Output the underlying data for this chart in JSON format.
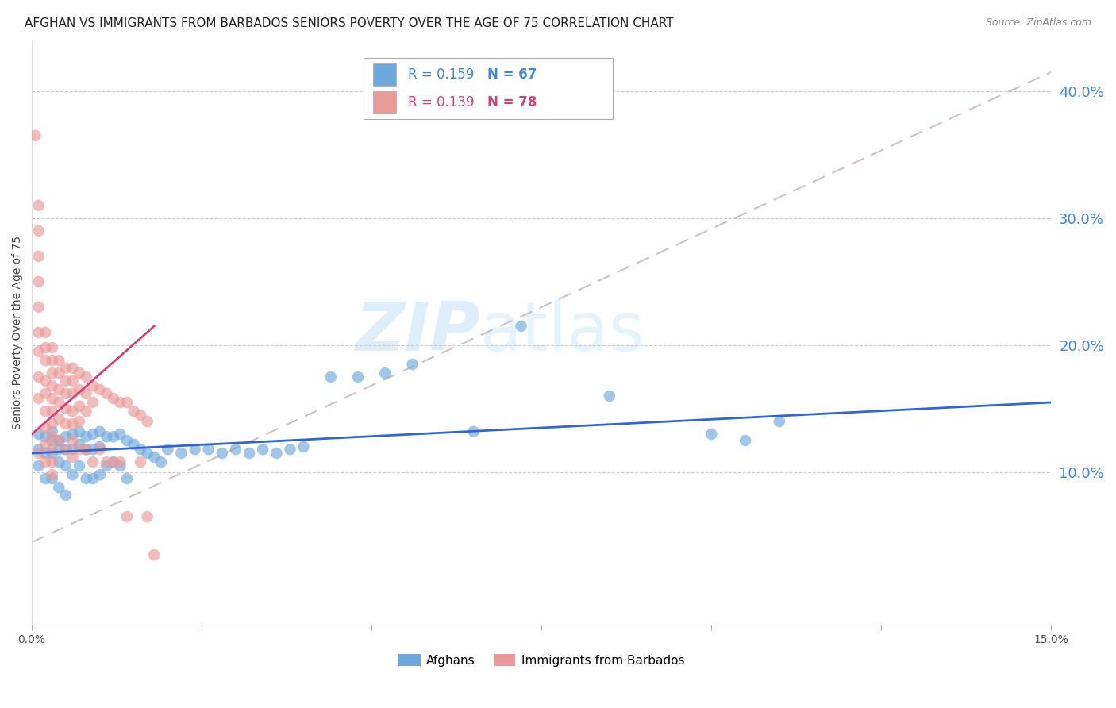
{
  "title": "AFGHAN VS IMMIGRANTS FROM BARBADOS SENIORS POVERTY OVER THE AGE OF 75 CORRELATION CHART",
  "source": "Source: ZipAtlas.com",
  "ylabel": "Seniors Poverty Over the Age of 75",
  "xlim": [
    0.0,
    0.15
  ],
  "ylim": [
    -0.02,
    0.44
  ],
  "x_ticks": [
    0.0,
    0.025,
    0.05,
    0.075,
    0.1,
    0.125,
    0.15
  ],
  "x_tick_labels": [
    "0.0%",
    "",
    "",
    "",
    "",
    "",
    "15.0%"
  ],
  "y_ticks_right": [
    0.1,
    0.2,
    0.3,
    0.4
  ],
  "y_tick_labels_right": [
    "10.0%",
    "20.0%",
    "30.0%",
    "40.0%"
  ],
  "legend_r1": "R = 0.159",
  "legend_n1": "N = 67",
  "legend_r2": "R = 0.139",
  "legend_n2": "N = 78",
  "afghan_color": "#6fa8dc",
  "barbados_color": "#ea9999",
  "afghan_line_color": "#3366cc",
  "barbados_line_color": "#cc4477",
  "diagonal_color": "#ccbbbb",
  "title_fontsize": 11,
  "axis_label_fontsize": 10,
  "tick_fontsize": 10,
  "afghan_x": [
    0.001,
    0.001,
    0.001,
    0.002,
    0.002,
    0.002,
    0.003,
    0.003,
    0.003,
    0.003,
    0.004,
    0.004,
    0.004,
    0.004,
    0.005,
    0.005,
    0.005,
    0.005,
    0.006,
    0.006,
    0.006,
    0.007,
    0.007,
    0.007,
    0.008,
    0.008,
    0.008,
    0.009,
    0.009,
    0.009,
    0.01,
    0.01,
    0.01,
    0.011,
    0.011,
    0.012,
    0.012,
    0.013,
    0.013,
    0.014,
    0.014,
    0.015,
    0.016,
    0.017,
    0.018,
    0.019,
    0.02,
    0.022,
    0.024,
    0.026,
    0.028,
    0.03,
    0.032,
    0.034,
    0.036,
    0.038,
    0.04,
    0.044,
    0.048,
    0.052,
    0.056,
    0.065,
    0.072,
    0.085,
    0.1,
    0.105,
    0.11
  ],
  "afghan_y": [
    0.13,
    0.118,
    0.105,
    0.128,
    0.115,
    0.095,
    0.132,
    0.125,
    0.115,
    0.095,
    0.125,
    0.118,
    0.108,
    0.088,
    0.128,
    0.118,
    0.105,
    0.082,
    0.13,
    0.118,
    0.098,
    0.132,
    0.122,
    0.105,
    0.128,
    0.118,
    0.095,
    0.13,
    0.118,
    0.095,
    0.132,
    0.12,
    0.098,
    0.128,
    0.105,
    0.128,
    0.108,
    0.13,
    0.105,
    0.125,
    0.095,
    0.122,
    0.118,
    0.115,
    0.112,
    0.108,
    0.118,
    0.115,
    0.118,
    0.118,
    0.115,
    0.118,
    0.115,
    0.118,
    0.115,
    0.118,
    0.12,
    0.175,
    0.175,
    0.178,
    0.185,
    0.132,
    0.215,
    0.16,
    0.13,
    0.125,
    0.14
  ],
  "barbados_x": [
    0.0005,
    0.001,
    0.001,
    0.001,
    0.001,
    0.001,
    0.001,
    0.001,
    0.001,
    0.001,
    0.001,
    0.002,
    0.002,
    0.002,
    0.002,
    0.002,
    0.002,
    0.002,
    0.002,
    0.002,
    0.003,
    0.003,
    0.003,
    0.003,
    0.003,
    0.003,
    0.003,
    0.003,
    0.003,
    0.003,
    0.003,
    0.004,
    0.004,
    0.004,
    0.004,
    0.004,
    0.004,
    0.005,
    0.005,
    0.005,
    0.005,
    0.005,
    0.005,
    0.006,
    0.006,
    0.006,
    0.006,
    0.006,
    0.006,
    0.006,
    0.007,
    0.007,
    0.007,
    0.007,
    0.007,
    0.008,
    0.008,
    0.008,
    0.008,
    0.009,
    0.009,
    0.009,
    0.01,
    0.01,
    0.011,
    0.011,
    0.012,
    0.012,
    0.013,
    0.013,
    0.014,
    0.014,
    0.015,
    0.016,
    0.016,
    0.017,
    0.017,
    0.018
  ],
  "barbados_y": [
    0.365,
    0.31,
    0.29,
    0.27,
    0.25,
    0.23,
    0.21,
    0.195,
    0.175,
    0.158,
    0.115,
    0.21,
    0.198,
    0.188,
    0.172,
    0.162,
    0.148,
    0.135,
    0.122,
    0.108,
    0.198,
    0.188,
    0.178,
    0.168,
    0.158,
    0.148,
    0.138,
    0.128,
    0.118,
    0.108,
    0.098,
    0.188,
    0.178,
    0.165,
    0.155,
    0.142,
    0.125,
    0.182,
    0.172,
    0.162,
    0.15,
    0.138,
    0.118,
    0.182,
    0.172,
    0.162,
    0.148,
    0.138,
    0.125,
    0.112,
    0.178,
    0.165,
    0.152,
    0.14,
    0.118,
    0.175,
    0.162,
    0.148,
    0.118,
    0.168,
    0.155,
    0.108,
    0.165,
    0.118,
    0.162,
    0.108,
    0.158,
    0.108,
    0.155,
    0.108,
    0.155,
    0.065,
    0.148,
    0.145,
    0.108,
    0.14,
    0.065,
    0.035
  ]
}
